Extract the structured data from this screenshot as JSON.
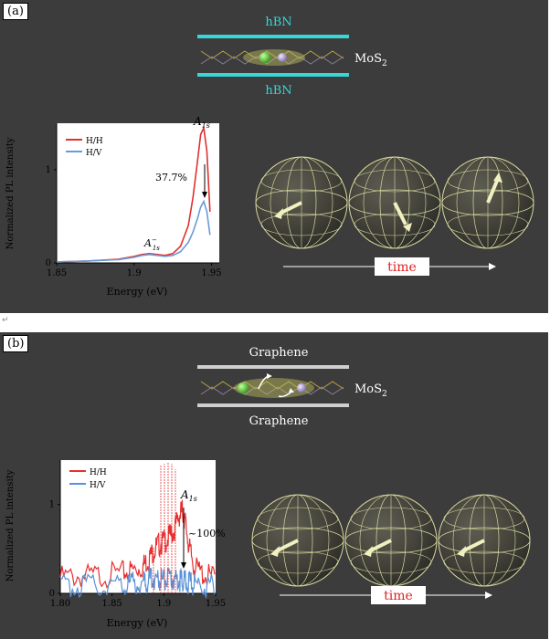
{
  "panel_a": {
    "label": "(a)",
    "schematic": {
      "top_layer": "hBN",
      "bottom_layer": "hBN",
      "material": "MoS",
      "material_sub": "2"
    },
    "annotations": {
      "peak": "A",
      "peak_sub": "1s",
      "trion": "A",
      "trion_sup": "−",
      "trion_sub": "1s",
      "percent": "37.7%"
    },
    "time_label": "time",
    "colors": {
      "layer": "#38d6d6",
      "hh": "#e03030",
      "hv": "#6a9ad8"
    }
  },
  "panel_b": {
    "label": "(b)",
    "schematic": {
      "top_layer": "Graphene",
      "bottom_layer": "Graphene",
      "material": "MoS",
      "material_sub": "2"
    },
    "annotations": {
      "peak": "A",
      "peak_sub": "1s",
      "percent": "~100%"
    },
    "time_label": "time",
    "colors": {
      "layer": "#cfcfcf",
      "hh": "#e83030",
      "hv": "#5a92d6"
    }
  },
  "chart_data": [
    {
      "type": "line",
      "xlabel": "Energy (eV)",
      "ylabel": "Normalized PL intensity",
      "xlim": [
        1.85,
        1.955
      ],
      "ylim": [
        0,
        1.5
      ],
      "x_ticks": [
        "1.85",
        "1.9",
        "1.95"
      ],
      "y_ticks": [
        "0",
        "1"
      ],
      "legend_placement": "top-left",
      "series": [
        {
          "name": "H/H",
          "x": [
            1.85,
            1.87,
            1.89,
            1.9,
            1.905,
            1.91,
            1.915,
            1.92,
            1.925,
            1.93,
            1.935,
            1.938,
            1.941,
            1.943,
            1.945,
            1.947,
            1.949
          ],
          "values": [
            0.01,
            0.02,
            0.04,
            0.07,
            0.09,
            0.1,
            0.09,
            0.08,
            0.1,
            0.18,
            0.4,
            0.7,
            1.1,
            1.38,
            1.45,
            1.2,
            0.55
          ]
        },
        {
          "name": "H/V",
          "x": [
            1.85,
            1.87,
            1.89,
            1.9,
            1.905,
            1.91,
            1.915,
            1.92,
            1.925,
            1.93,
            1.935,
            1.938,
            1.941,
            1.943,
            1.945,
            1.947,
            1.949
          ],
          "values": [
            0.01,
            0.02,
            0.035,
            0.06,
            0.08,
            0.09,
            0.08,
            0.07,
            0.08,
            0.12,
            0.22,
            0.33,
            0.48,
            0.6,
            0.66,
            0.55,
            0.3
          ]
        }
      ]
    },
    {
      "type": "line",
      "xlabel": "Energy (eV)",
      "ylabel": "Normalized PL intensity",
      "xlim": [
        1.8,
        1.95
      ],
      "ylim": [
        0,
        1.5
      ],
      "x_ticks": [
        "1.80",
        "1.85",
        "1.9",
        "1.95"
      ],
      "y_ticks": [
        "0",
        "1"
      ],
      "legend_placement": "top-left",
      "series": [
        {
          "name": "H/H",
          "x": [
            1.8,
            1.82,
            1.84,
            1.86,
            1.87,
            1.88,
            1.885,
            1.89,
            1.895,
            1.9,
            1.905,
            1.91,
            1.915,
            1.918,
            1.921,
            1.925,
            1.93,
            1.94,
            1.95
          ],
          "values": [
            0.25,
            0.26,
            0.27,
            0.3,
            0.33,
            0.38,
            0.45,
            0.55,
            0.62,
            0.65,
            0.7,
            0.78,
            0.95,
            1.0,
            0.85,
            0.55,
            0.35,
            0.27,
            0.25
          ]
        },
        {
          "name": "H/V",
          "x": [
            1.8,
            1.82,
            1.84,
            1.86,
            1.87,
            1.88,
            1.885,
            1.89,
            1.895,
            1.9,
            1.905,
            1.91,
            1.915,
            1.918,
            1.921,
            1.925,
            1.93,
            1.94,
            1.95
          ],
          "values": [
            0.15,
            0.16,
            0.16,
            0.17,
            0.18,
            0.2,
            0.22,
            0.25,
            0.24,
            0.22,
            0.22,
            0.23,
            0.22,
            0.21,
            0.2,
            0.18,
            0.17,
            0.16,
            0.15
          ]
        }
      ]
    }
  ]
}
